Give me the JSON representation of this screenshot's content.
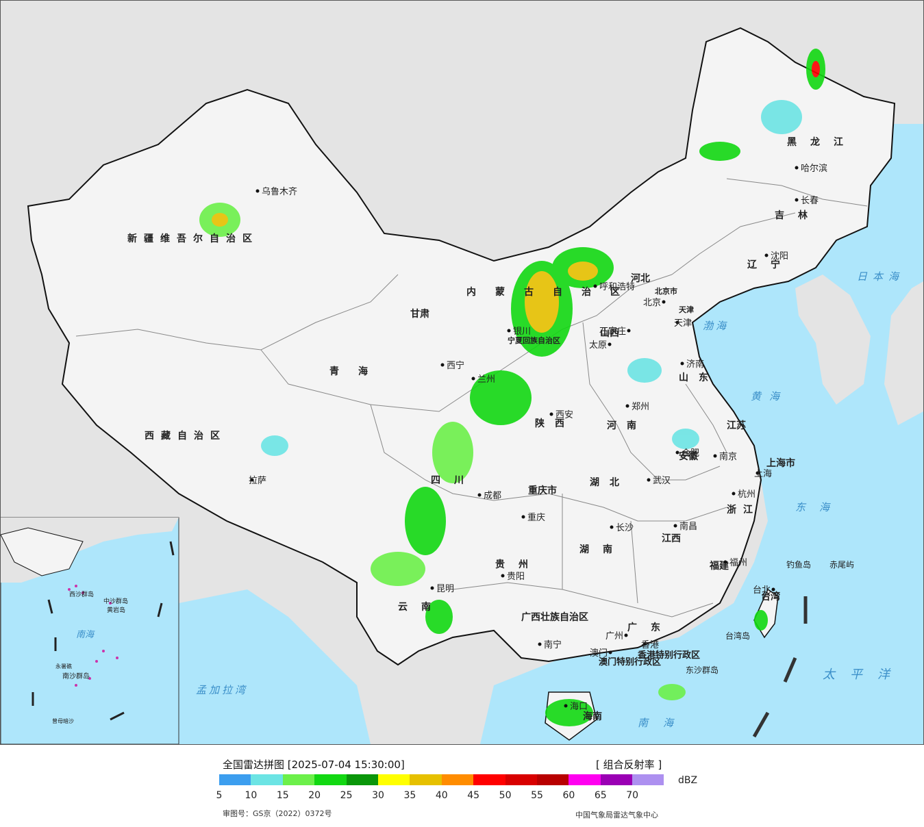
{
  "map": {
    "provinces": [
      "新疆维吾尔自治区",
      "西藏自治区",
      "青海",
      "甘肃",
      "内蒙古自治区",
      "黑龙江",
      "吉林",
      "辽宁",
      "河北",
      "山西",
      "山东",
      "河南",
      "陕西",
      "宁夏回族自治区",
      "四川",
      "重庆市",
      "湖北",
      "湖南",
      "江西",
      "安徽",
      "江苏",
      "浙江",
      "福建",
      "贵州",
      "云南",
      "广西壮族自治区",
      "广东",
      "海南",
      "台湾",
      "上海市",
      "北京市",
      "天津",
      "香港特别行政区",
      "澳门特别行政区"
    ],
    "cities": {
      "urumqi": "乌鲁木齐",
      "lhasa": "拉萨",
      "xining": "西宁",
      "lanzhou": "兰州",
      "yinchuan": "银川",
      "hohhot": "呼和浩特",
      "harbin": "哈尔滨",
      "changchun": "长春",
      "shenyang": "沈阳",
      "beijing": "北京",
      "tianjin": "天津",
      "shijiazhuang": "石家庄",
      "taiyuan": "太原",
      "jinan": "济南",
      "zhengzhou": "郑州",
      "xian": "西安",
      "chengdu": "成都",
      "chongqing": "重庆",
      "wuhan": "武汉",
      "hefei": "合肥",
      "nanjing": "南京",
      "shanghai": "上海",
      "hangzhou": "杭州",
      "changsha": "长沙",
      "nanchang": "南昌",
      "fuzhou": "福州",
      "taipei": "台北",
      "guiyang": "贵阳",
      "kunming": "昆明",
      "nanning": "南宁",
      "guangzhou": "广州",
      "hongkong": "香港",
      "macao": "澳门",
      "haikou": "海口"
    },
    "seas": {
      "japan_sea": "日本海",
      "bohai": "渤海",
      "yellow_sea": "黄海",
      "east_sea": "东海",
      "pacific": "太平洋",
      "south_sea": "南海",
      "bengal": "孟加拉湾"
    },
    "islands": {
      "diaoyu": "钓鱼岛",
      "chiwei": "赤尾屿",
      "dongsha": "东沙群岛",
      "taiwan_island": "台湾岛"
    },
    "inset_labels": {
      "xisha": "西沙群岛",
      "zhongsha": "中沙群岛",
      "huangyan": "黄岩岛",
      "nansha": "南沙群岛",
      "yongshu": "永暑礁",
      "zengmu": "曾母暗沙",
      "south_sea": "南海"
    }
  },
  "legend": {
    "title": "全国雷达拼图 [2025-07-04 15:30:00]",
    "product": "[ 组合反射率 ]",
    "unit": "dBZ",
    "colors": [
      "#3c9eef",
      "#6ce4e4",
      "#6cf04a",
      "#12d812",
      "#0a960a",
      "#ffff00",
      "#e6c000",
      "#ff8c00",
      "#ff0000",
      "#d80000",
      "#b80000",
      "#ff00f0",
      "#9a00b4",
      "#ad90f0"
    ],
    "ticks": [
      "5",
      "10",
      "15",
      "20",
      "25",
      "30",
      "35",
      "40",
      "45",
      "50",
      "55",
      "60",
      "65",
      "70"
    ]
  },
  "footer": {
    "review_number": "审图号：GS京（2022）0372号",
    "agency": "中国气象局雷达气象中心"
  }
}
